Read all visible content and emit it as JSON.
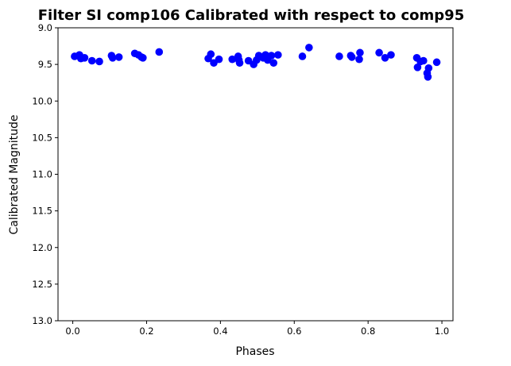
{
  "chart_data": {
    "type": "scatter",
    "title": "Filter SI comp106 Calibrated with respect to comp95",
    "xlabel": "Phases",
    "ylabel": "Calibrated Magnitude",
    "xlim": [
      -0.04,
      1.03
    ],
    "ylim": [
      13.0,
      9.0
    ],
    "y_inverted": true,
    "x_ticks": [
      "0.0",
      "0.2",
      "0.4",
      "0.6",
      "0.8",
      "1.0"
    ],
    "y_ticks": [
      "9.0",
      "9.5",
      "10.0",
      "10.5",
      "11.0",
      "11.5",
      "12.0",
      "12.5",
      "13.0"
    ],
    "grid": false,
    "legend": "none",
    "marker_color": "#0000ff",
    "series": [
      {
        "points": [
          {
            "x": 0.005,
            "y": 9.39
          },
          {
            "x": 0.018,
            "y": 9.37
          },
          {
            "x": 0.022,
            "y": 9.42
          },
          {
            "x": 0.032,
            "y": 9.41
          },
          {
            "x": 0.052,
            "y": 9.45
          },
          {
            "x": 0.072,
            "y": 9.46
          },
          {
            "x": 0.105,
            "y": 9.38
          },
          {
            "x": 0.108,
            "y": 9.41
          },
          {
            "x": 0.125,
            "y": 9.4
          },
          {
            "x": 0.168,
            "y": 9.35
          },
          {
            "x": 0.178,
            "y": 9.37
          },
          {
            "x": 0.186,
            "y": 9.4
          },
          {
            "x": 0.19,
            "y": 9.41
          },
          {
            "x": 0.234,
            "y": 9.33
          },
          {
            "x": 0.367,
            "y": 9.42
          },
          {
            "x": 0.374,
            "y": 9.36
          },
          {
            "x": 0.382,
            "y": 9.48
          },
          {
            "x": 0.396,
            "y": 9.43
          },
          {
            "x": 0.432,
            "y": 9.43
          },
          {
            "x": 0.448,
            "y": 9.39
          },
          {
            "x": 0.45,
            "y": 9.44
          },
          {
            "x": 0.452,
            "y": 9.48
          },
          {
            "x": 0.476,
            "y": 9.45
          },
          {
            "x": 0.49,
            "y": 9.5
          },
          {
            "x": 0.498,
            "y": 9.44
          },
          {
            "x": 0.504,
            "y": 9.38
          },
          {
            "x": 0.516,
            "y": 9.41
          },
          {
            "x": 0.522,
            "y": 9.37
          },
          {
            "x": 0.528,
            "y": 9.44
          },
          {
            "x": 0.538,
            "y": 9.38
          },
          {
            "x": 0.544,
            "y": 9.48
          },
          {
            "x": 0.556,
            "y": 9.37
          },
          {
            "x": 0.622,
            "y": 9.39
          },
          {
            "x": 0.64,
            "y": 9.27
          },
          {
            "x": 0.722,
            "y": 9.39
          },
          {
            "x": 0.753,
            "y": 9.38
          },
          {
            "x": 0.756,
            "y": 9.4
          },
          {
            "x": 0.776,
            "y": 9.43
          },
          {
            "x": 0.778,
            "y": 9.34
          },
          {
            "x": 0.83,
            "y": 9.34
          },
          {
            "x": 0.846,
            "y": 9.41
          },
          {
            "x": 0.862,
            "y": 9.37
          },
          {
            "x": 0.932,
            "y": 9.41
          },
          {
            "x": 0.934,
            "y": 9.54
          },
          {
            "x": 0.942,
            "y": 9.46
          },
          {
            "x": 0.95,
            "y": 9.45
          },
          {
            "x": 0.96,
            "y": 9.62
          },
          {
            "x": 0.962,
            "y": 9.67
          },
          {
            "x": 0.964,
            "y": 9.55
          },
          {
            "x": 0.986,
            "y": 9.47
          }
        ]
      }
    ]
  }
}
